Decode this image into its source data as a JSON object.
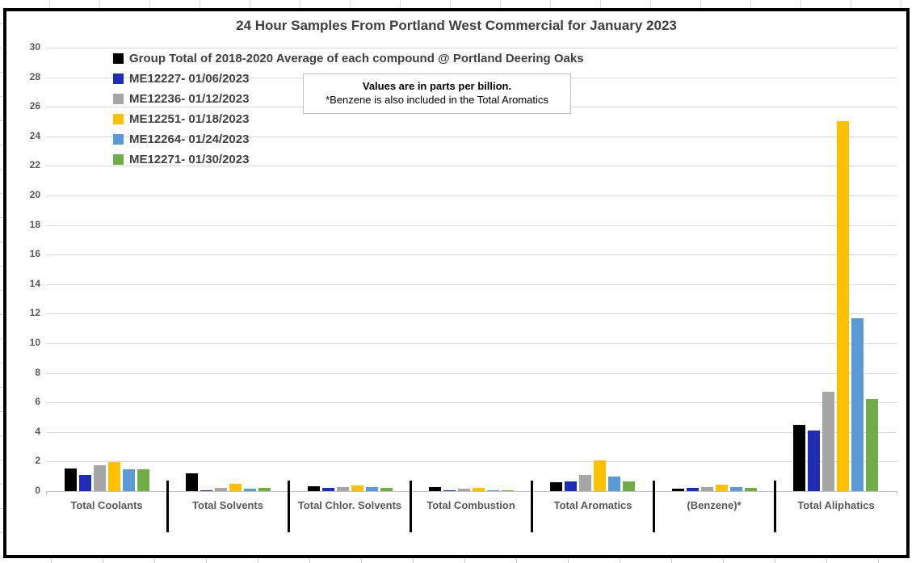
{
  "note": {
    "line1": "Values are in parts per billion.",
    "line2": "*Benzene is also included in the Total Aromatics"
  },
  "chart_data": {
    "type": "bar",
    "title": "24 Hour Samples From Portland West Commercial for January 2023",
    "categories": [
      "Total Coolants",
      "Total Solvents",
      "Total Chlor. Solvents",
      "Total Combustion",
      "Total Aromatics",
      "(Benzene)*",
      "Total Aliphatics"
    ],
    "series": [
      {
        "name": "Group Total of 2018-2020 Average of each compound @ Portland Deering Oaks",
        "color": "#000000",
        "values": [
          1.55,
          1.2,
          0.35,
          0.25,
          0.6,
          0.15,
          4.5
        ]
      },
      {
        "name": "ME12227- 01/06/2023",
        "color": "#1F2DB4",
        "values": [
          1.1,
          0.05,
          0.2,
          0.05,
          0.65,
          0.2,
          4.1
        ]
      },
      {
        "name": "ME12236- 01/12/2023",
        "color": "#A6A6A6",
        "values": [
          1.75,
          0.2,
          0.3,
          0.15,
          1.1,
          0.3,
          6.7
        ]
      },
      {
        "name": "ME12251- 01/18/2023",
        "color": "#FFC000",
        "values": [
          1.95,
          0.5,
          0.4,
          0.2,
          2.05,
          0.45,
          25.0
        ]
      },
      {
        "name": "ME12264- 01/24/2023",
        "color": "#5B9BD5",
        "values": [
          1.5,
          0.15,
          0.3,
          0.08,
          1.0,
          0.25,
          11.7
        ]
      },
      {
        "name": "ME12271- 01/30/2023",
        "color": "#70AD47",
        "values": [
          1.45,
          0.2,
          0.2,
          0.05,
          0.65,
          0.2,
          6.25
        ]
      }
    ],
    "ylim": [
      0,
      30
    ],
    "ytick_step": 2,
    "yticks": [
      0,
      2,
      4,
      6,
      8,
      10,
      12,
      14,
      16,
      18,
      20,
      22,
      24,
      26,
      28,
      30
    ],
    "grid": true,
    "legend_position": "inside-top-left",
    "note": "Values are in parts per billion. *Benzene is also included in the Total Aromatics"
  }
}
